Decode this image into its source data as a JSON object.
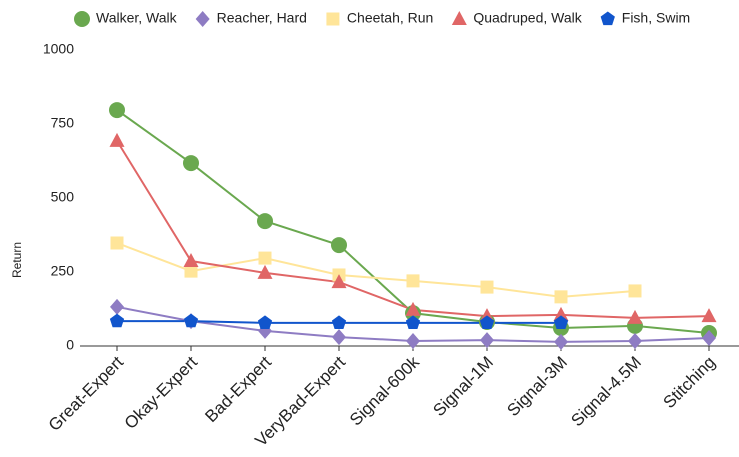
{
  "chart_data": {
    "type": "line",
    "y_label": "Return",
    "categories": [
      "Great-Expert",
      "Okay-Expert",
      "Bad-Expert",
      "VeryBad-Expert",
      "Signal-600k",
      "Signal-1M",
      "Signal-3M",
      "Signal-4.5M",
      "Stitching"
    ],
    "series": [
      {
        "name": "Walker, Walk",
        "color": "#6aa84f",
        "marker": "circle",
        "values": [
          797,
          618,
          422,
          341,
          111,
          81,
          61,
          68,
          44
        ]
      },
      {
        "name": "Reacher, Hard",
        "color": "#8e7cc3",
        "marker": "diamond",
        "values": [
          132,
          84,
          51,
          30,
          17,
          20,
          14,
          17,
          27
        ]
      },
      {
        "name": "Cheetah, Run",
        "color": "#ffe599",
        "marker": "square",
        "values": [
          348,
          253,
          297,
          240,
          220,
          199,
          166,
          186,
          null
        ]
      },
      {
        "name": "Quadruped, Walk",
        "color": "#e06666",
        "marker": "triangle",
        "values": [
          693,
          287,
          247,
          216,
          122,
          101,
          105,
          95,
          101
        ]
      },
      {
        "name": "Fish, Swim",
        "color": "#1155cc",
        "marker": "pentagon",
        "values": [
          84,
          84,
          78,
          78,
          78,
          78,
          78,
          null,
          null
        ]
      }
    ],
    "ylim": [
      0,
      1000
    ],
    "yticks": [
      0,
      250,
      500,
      750,
      1000
    ],
    "grid": false
  }
}
